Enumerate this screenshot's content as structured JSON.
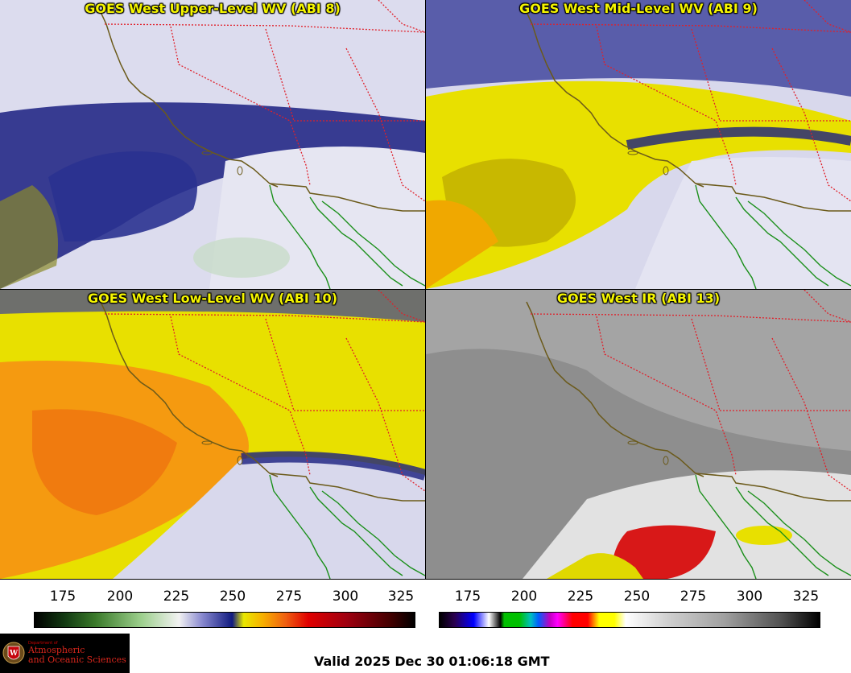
{
  "panels": [
    {
      "title": "GOES West Upper-Level WV (ABI 8)",
      "product": "water-vapor-upper"
    },
    {
      "title": "GOES West Mid-Level WV (ABI 9)",
      "product": "water-vapor-mid"
    },
    {
      "title": "GOES West Low-Level WV (ABI 10)",
      "product": "water-vapor-low"
    },
    {
      "title": "GOES West IR (ABI 13)",
      "product": "infrared"
    }
  ],
  "colorbars": {
    "wv": {
      "ticks": [
        "175",
        "200",
        "225",
        "250",
        "275",
        "300",
        "325"
      ]
    },
    "ir": {
      "ticks": [
        "175",
        "200",
        "225",
        "250",
        "275",
        "300",
        "325"
      ]
    }
  },
  "logo": {
    "dept": "Department of",
    "line1": "Atmospheric",
    "line2": "and Oceanic Sciences"
  },
  "valid_time": "Valid 2025 Dec 30 01:06:18 GMT",
  "colors": {
    "title": "#f5f500",
    "state_border": "#e0202a",
    "coastline": "#6b5a1a",
    "mexico_coast": "#1a8f1a"
  }
}
